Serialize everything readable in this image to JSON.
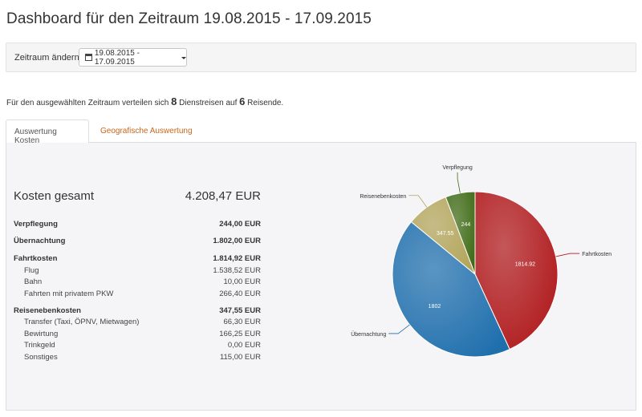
{
  "header": {
    "title": "Dashboard für den Zeitraum 19.08.2015 - 17.09.2015"
  },
  "filter": {
    "label": "Zeitraum ändern:",
    "date_range": "19.08.2015 - 17.09.2015"
  },
  "summary": {
    "text_a": "Für den ausgewählten Zeitraum verteilen sich ",
    "trips": "8",
    "text_b": " Dienstreisen auf ",
    "travelers": "6",
    "text_c": " Reisende."
  },
  "tabs": [
    {
      "label": "Auswertung Kosten",
      "active": true
    },
    {
      "label": "Geografische Auswertung",
      "active": false
    }
  ],
  "costs": {
    "total_label": "Kosten gesamt",
    "total_value": "4.208,47 EUR",
    "rows": [
      {
        "label": "Verpflegung",
        "value": "244,00 EUR",
        "main": true
      },
      {
        "label": "Übernachtung",
        "value": "1.802,00 EUR",
        "main": true
      },
      {
        "label": "Fahrtkosten",
        "value": "1.814,92 EUR",
        "main": true
      },
      {
        "label": "Flug",
        "value": "1.538,52 EUR",
        "main": false
      },
      {
        "label": "Bahn",
        "value": "10,00 EUR",
        "main": false
      },
      {
        "label": "Fahrten mit privatem PKW",
        "value": "266,40 EUR",
        "main": false
      },
      {
        "label": "Reisenebenkosten",
        "value": "347,55 EUR",
        "main": true
      },
      {
        "label": "Transfer (Taxi, ÖPNV, Mietwagen)",
        "value": "66,30 EUR",
        "main": false
      },
      {
        "label": "Bewirtung",
        "value": "166,25 EUR",
        "main": false
      },
      {
        "label": "Trinkgeld",
        "value": "0,00 EUR",
        "main": false
      },
      {
        "label": "Sonstiges",
        "value": "115,00 EUR",
        "main": false
      }
    ]
  },
  "chart_data": {
    "type": "pie",
    "slices": [
      {
        "label": "Fahrtkosten",
        "value": 1814.92,
        "value_label": "1814.92",
        "color": "#b0191b"
      },
      {
        "label": "Übernachtung",
        "value": 1802,
        "value_label": "1802",
        "color": "#1f6fad"
      },
      {
        "label": "Reisenebenkosten",
        "value": 347.55,
        "value_label": "347.55",
        "color": "#b3a55a"
      },
      {
        "label": "Verpflegung",
        "value": 244,
        "value_label": "244",
        "color": "#3f6b15"
      }
    ]
  }
}
